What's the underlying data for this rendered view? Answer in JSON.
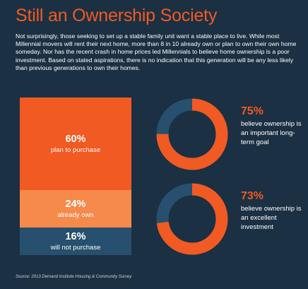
{
  "header": {
    "title": "Still an Ownership Society",
    "intro": "Not surprisingly, those seeking to set up a stable family unit want a stable place to live. While most Millennial movers will rent their next home, more than 8 in 10 already own or plan to own their own home someday. Nor has the recent crash in home prices led Millennials to believe home ownership is a poor investment. Based on stated aspirations, there is no indication that this generation will be any less likely than previous generations to own their homes."
  },
  "colors": {
    "background": "#1b3042",
    "accent": "#f15a22",
    "light_orange": "#f58a4b",
    "blue": "#27506e"
  },
  "chart_data": [
    {
      "type": "bar",
      "categories": [
        "plan to purchase",
        "already own",
        "will not purchase"
      ],
      "values": [
        60,
        24,
        16
      ],
      "value_labels": [
        "60%",
        "24%",
        "16%"
      ]
    },
    {
      "type": "pie",
      "labels": [
        "believe ownership is an important long-term goal"
      ],
      "values": [
        75
      ],
      "value_label": "75%"
    },
    {
      "type": "pie",
      "labels": [
        "believe ownership is an excellent investment"
      ],
      "values": [
        73
      ],
      "value_label": "73%"
    }
  ],
  "stats": [
    {
      "value": "75%",
      "description": "believe ownership is an important long-term goal"
    },
    {
      "value": "73%",
      "description": "believe ownership is an excellent investment"
    }
  ],
  "source": "Source: 2013 Demand Institute Housing & Community Survey"
}
